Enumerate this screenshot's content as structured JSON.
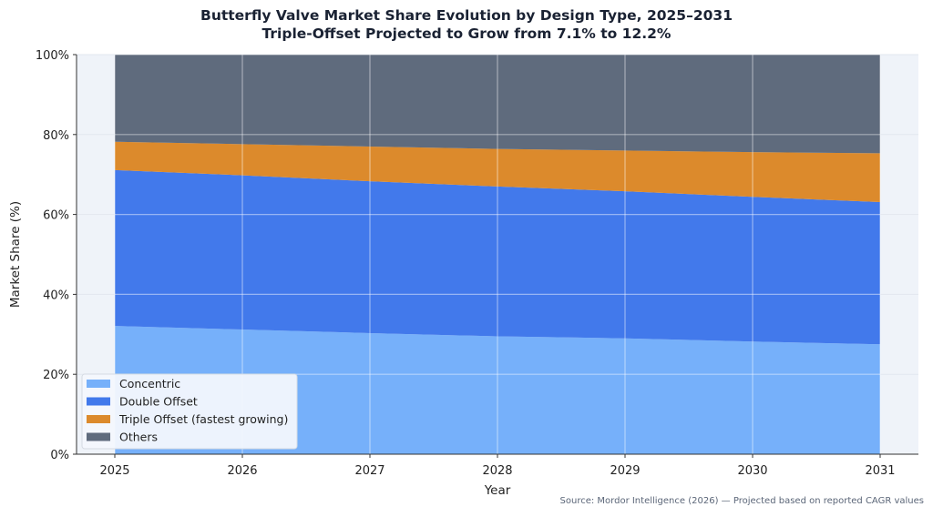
{
  "chart_data": {
    "type": "area",
    "stacked": true,
    "title": "Butterfly Valve Market Share Evolution by Design Type, 2025–2031",
    "subtitle": "Triple-Offset Projected to Grow from 7.1% to 12.2%",
    "xlabel": "Year",
    "ylabel": "Market Share (%)",
    "x": [
      2025,
      2026,
      2027,
      2028,
      2029,
      2030,
      2031
    ],
    "xticks": [
      "2025",
      "2026",
      "2027",
      "2028",
      "2029",
      "2030",
      "2031"
    ],
    "yticks": [
      "0%",
      "20%",
      "40%",
      "60%",
      "80%",
      "100%"
    ],
    "ytick_values": [
      0,
      20,
      40,
      60,
      80,
      100
    ],
    "xlim": [
      2024.7,
      2031.3
    ],
    "ylim": [
      0,
      100
    ],
    "grid": true,
    "legend_position": "lower-left",
    "series": [
      {
        "name": "Concentric",
        "color": "#76b0fa",
        "values": [
          32.1,
          31.2,
          30.3,
          29.5,
          29.0,
          28.2,
          27.5
        ]
      },
      {
        "name": "Double Offset",
        "color": "#4279eb",
        "values": [
          39.0,
          38.6,
          38.0,
          37.5,
          36.8,
          36.2,
          35.6
        ]
      },
      {
        "name": "Triple Offset (fastest growing)",
        "color": "#dc8a2c",
        "values": [
          7.1,
          7.8,
          8.7,
          9.4,
          10.2,
          11.2,
          12.2
        ]
      },
      {
        "name": "Others",
        "color": "#5f6b7d",
        "values": [
          21.8,
          22.4,
          23.0,
          23.6,
          24.0,
          24.4,
          24.7
        ]
      }
    ],
    "source": "Source: Mordor Intelligence (2026) — Projected based on reported CAGR values"
  }
}
